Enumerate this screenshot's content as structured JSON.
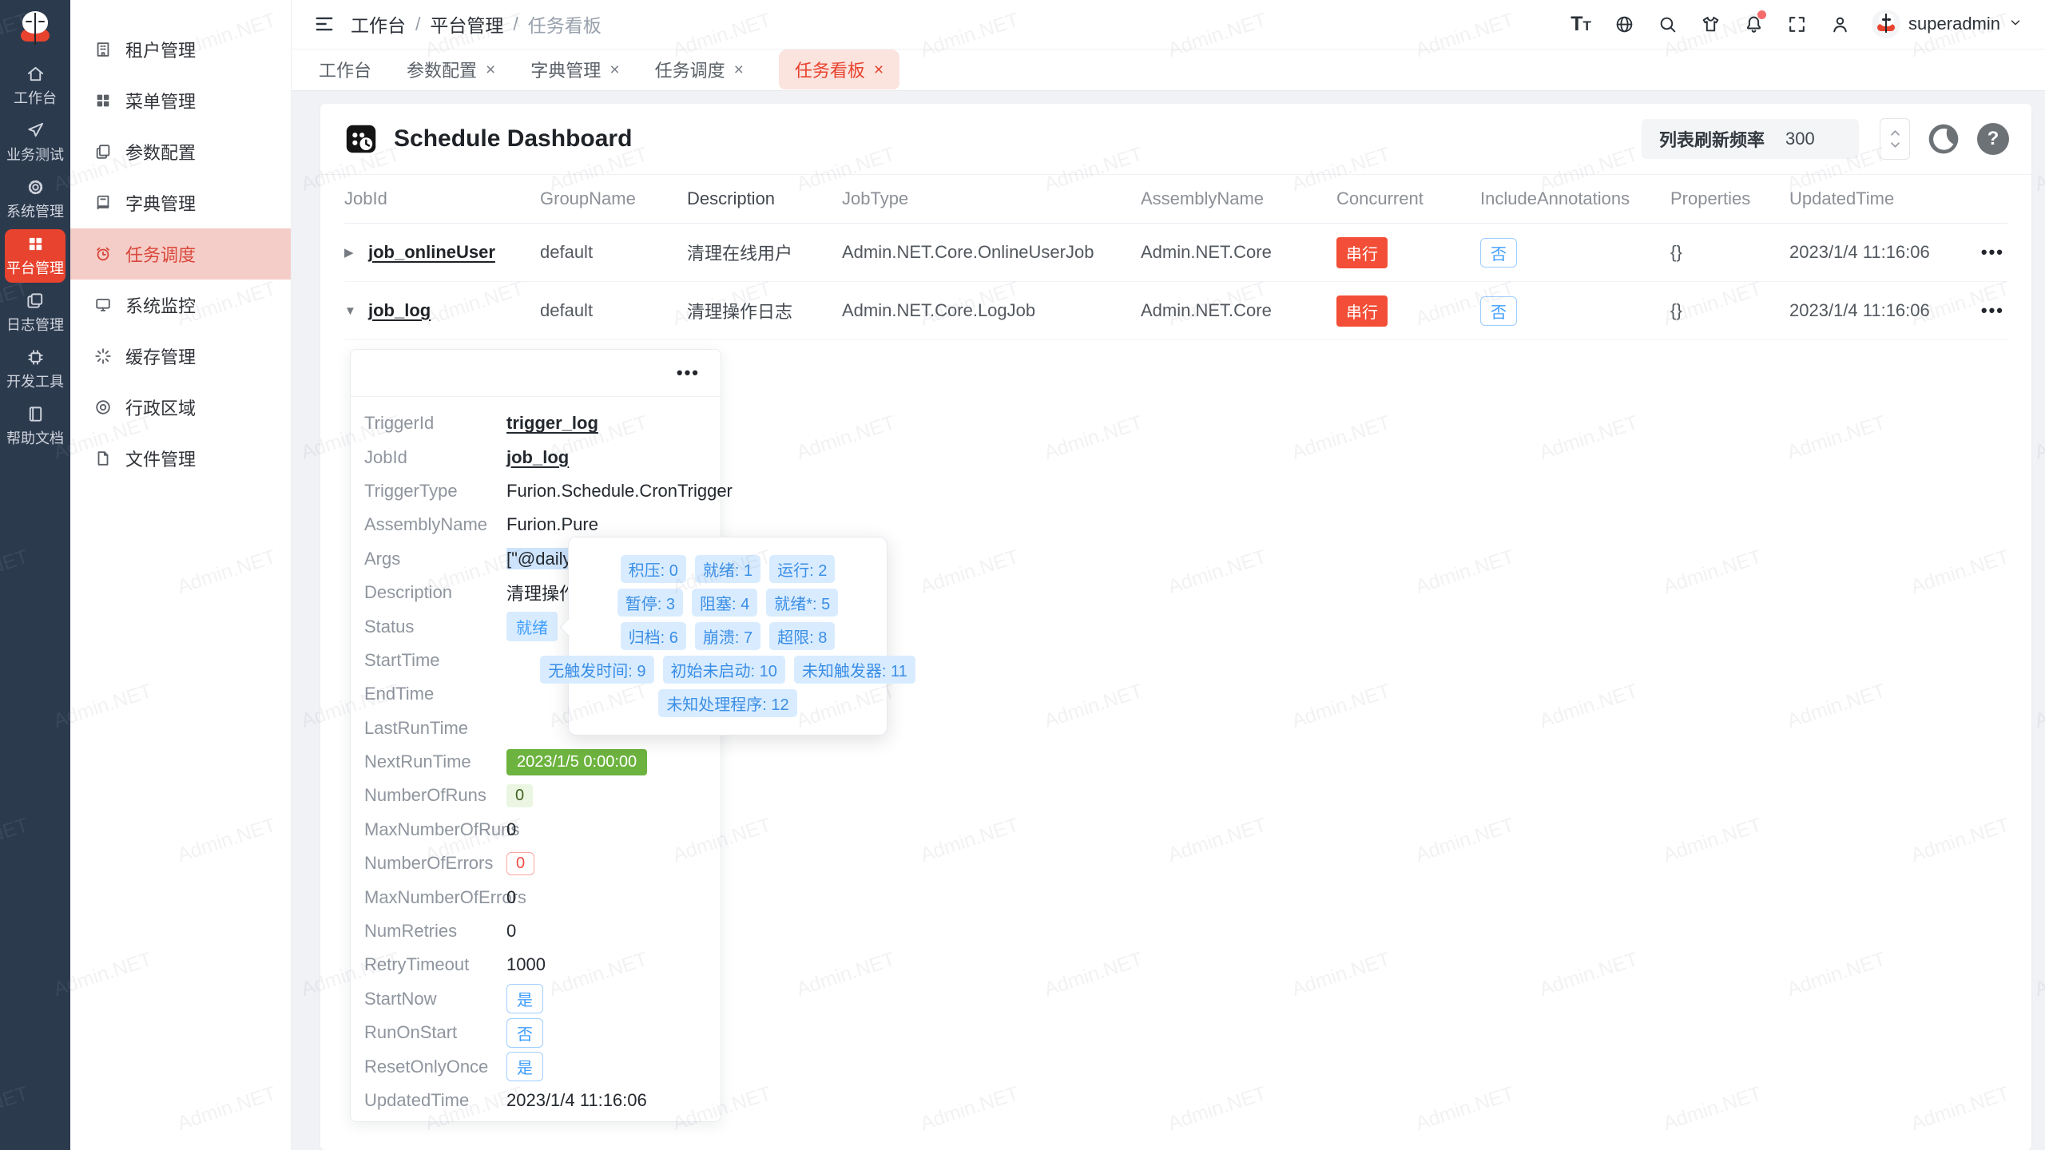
{
  "brand": {
    "name": "Admin.NET",
    "color": "#e2241d",
    "accent": "#e8432e"
  },
  "colors": {
    "primary": "#409eff",
    "success": "#6db33f",
    "danger": "#f34e37",
    "tab_active_bg": "#fbe3de",
    "rail_bg": "#2c3a4e"
  },
  "watermark": "Admin.NET",
  "icons": {
    "close": "×",
    "caret_right": "▶",
    "caret_down": "▼",
    "more": "•••",
    "help": "?",
    "font_big": "T",
    "font_small": "T"
  },
  "rail": {
    "items": [
      {
        "label": "工作台",
        "icon": "home-icon",
        "active": false
      },
      {
        "label": "业务测试",
        "icon": "paper-plane-icon",
        "active": false
      },
      {
        "label": "系统管理",
        "icon": "gear-icon",
        "active": false
      },
      {
        "label": "平台管理",
        "icon": "grid-icon",
        "active": true
      },
      {
        "label": "日志管理",
        "icon": "copy-docs-icon",
        "active": false
      },
      {
        "label": "开发工具",
        "icon": "chip-icon",
        "active": false
      },
      {
        "label": "帮助文档",
        "icon": "book-icon",
        "active": false
      }
    ]
  },
  "sidebar": {
    "items": [
      {
        "label": "租户管理",
        "icon": "building-icon",
        "active": false
      },
      {
        "label": "菜单管理",
        "icon": "menu-grid-icon",
        "active": false
      },
      {
        "label": "参数配置",
        "icon": "documents-icon",
        "active": false
      },
      {
        "label": "字典管理",
        "icon": "dictionary-icon",
        "active": false
      },
      {
        "label": "任务调度",
        "icon": "alarm-clock-icon",
        "active": true
      },
      {
        "label": "系统监控",
        "icon": "monitor-icon",
        "active": false
      },
      {
        "label": "缓存管理",
        "icon": "spinner-icon",
        "active": false
      },
      {
        "label": "行政区域",
        "icon": "location-icon",
        "active": false
      },
      {
        "label": "文件管理",
        "icon": "file-icon",
        "active": false
      }
    ]
  },
  "topbar": {
    "breadcrumb": [
      "工作台",
      "平台管理",
      "任务看板"
    ],
    "separator": "/",
    "username": "superadmin"
  },
  "tabs": {
    "items": [
      {
        "label": "工作台",
        "closable": false,
        "active": false
      },
      {
        "label": "参数配置",
        "closable": true,
        "active": false
      },
      {
        "label": "字典管理",
        "closable": true,
        "active": false
      },
      {
        "label": "任务调度",
        "closable": true,
        "active": false
      },
      {
        "label": "任务看板",
        "closable": true,
        "active": true
      }
    ]
  },
  "page": {
    "title": "Schedule Dashboard",
    "refresh_label": "列表刷新频率",
    "refresh_value": "300"
  },
  "table": {
    "columns": [
      "JobId",
      "GroupName",
      "Description",
      "JobType",
      "AssemblyName",
      "Concurrent",
      "IncludeAnnotations",
      "Properties",
      "UpdatedTime"
    ],
    "rows": [
      {
        "jobId": "job_onlineUser",
        "groupName": "default",
        "description": "清理在线用户",
        "jobType": "Admin.NET.Core.OnlineUserJob",
        "assemblyName": "Admin.NET.Core",
        "concurrent": "串行",
        "includeAnnotations": "否",
        "properties": "{}",
        "updatedTime": "2023/1/4 11:16:06"
      },
      {
        "jobId": "job_log",
        "groupName": "default",
        "description": "清理操作日志",
        "jobType": "Admin.NET.Core.LogJob",
        "assemblyName": "Admin.NET.Core",
        "concurrent": "串行",
        "includeAnnotations": "否",
        "properties": "{}",
        "updatedTime": "2023/1/4 11:16:06"
      }
    ]
  },
  "detail": {
    "rows": [
      {
        "label": "TriggerId",
        "value": "trigger_log"
      },
      {
        "label": "JobId",
        "value": "job_log"
      },
      {
        "label": "TriggerType",
        "value": "Furion.Schedule.CronTrigger"
      },
      {
        "label": "AssemblyName",
        "value": "Furion.Pure"
      },
      {
        "label": "Args",
        "value": "[\"@daily"
      },
      {
        "label": "Description",
        "value": "清理操作日志"
      },
      {
        "label": "Status",
        "value": "就绪"
      },
      {
        "label": "StartTime",
        "value": ""
      },
      {
        "label": "EndTime",
        "value": ""
      },
      {
        "label": "LastRunTime",
        "value": ""
      },
      {
        "label": "NextRunTime",
        "value": "2023/1/5 0:00:00"
      },
      {
        "label": "NumberOfRuns",
        "value": "0"
      },
      {
        "label": "MaxNumberOfRuns",
        "value": "0"
      },
      {
        "label": "NumberOfErrors",
        "value": "0"
      },
      {
        "label": "MaxNumberOfErrors",
        "value": "0"
      },
      {
        "label": "NumRetries",
        "value": "0"
      },
      {
        "label": "RetryTimeout",
        "value": "1000"
      },
      {
        "label": "StartNow",
        "value": "是"
      },
      {
        "label": "RunOnStart",
        "value": "否"
      },
      {
        "label": "ResetOnlyOnce",
        "value": "是"
      },
      {
        "label": "UpdatedTime",
        "value": "2023/1/4 11:16:06"
      }
    ]
  },
  "tooltip": {
    "badges": [
      "积压: 0",
      "就绪: 1",
      "运行: 2",
      "暂停: 3",
      "阻塞: 4",
      "就绪*: 5",
      "归档: 6",
      "崩溃: 7",
      "超限: 8",
      "无触发时间: 9",
      "初始未启动: 10",
      "未知触发器: 11",
      "未知处理程序: 12"
    ]
  }
}
